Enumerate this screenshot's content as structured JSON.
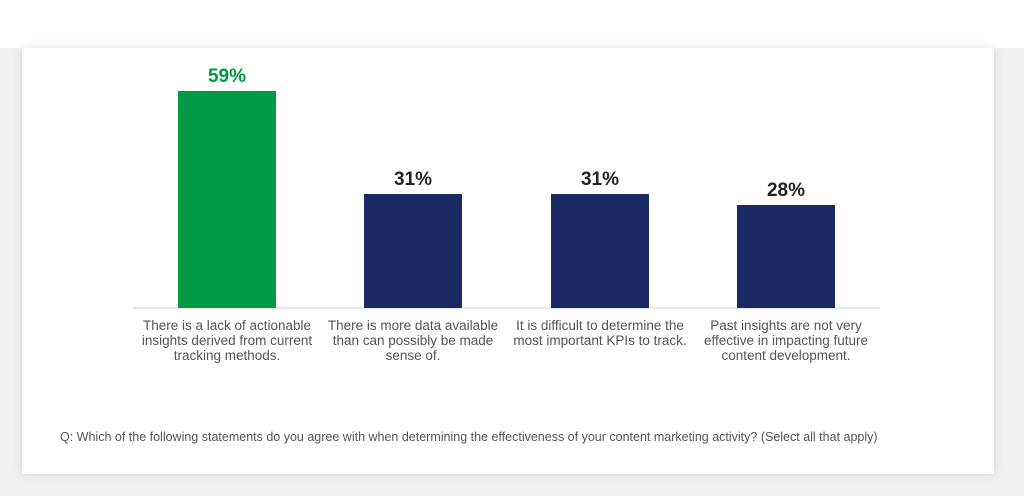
{
  "chart_data": {
    "type": "bar",
    "categories": [
      "There is a lack of actionable insights derived from current tracking methods.",
      "There is more data available than can possibly be made sense of.",
      "It is difficult to determine the most important KPIs to track.",
      "Past insights are not very effective in impacting future content development."
    ],
    "values": [
      59,
      31,
      31,
      28
    ],
    "value_labels": [
      "59%",
      "31%",
      "31%",
      "28%"
    ],
    "ylim": [
      0,
      59
    ],
    "grid": false,
    "highlight_index": 0
  },
  "colors": {
    "highlight": "#009a44",
    "default": "#1b2a65",
    "highlight_label": "#009a44",
    "default_label": "#222222",
    "axis": "#d0d0d0"
  },
  "footnote": "Q: Which of the following statements do you agree with when determining the effectiveness of your content marketing activity? (Select all that apply)"
}
